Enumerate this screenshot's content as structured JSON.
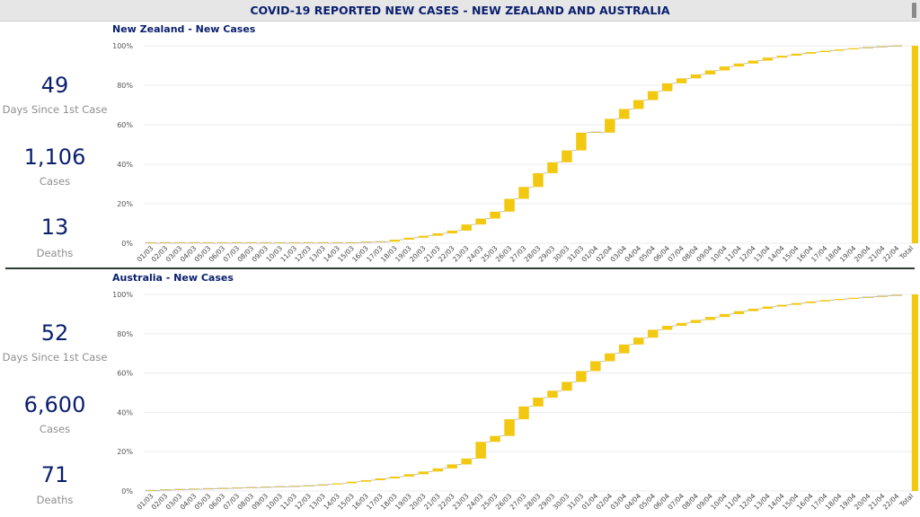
{
  "header": {
    "title": "COVID-19 REPORTED NEW CASES - NEW ZEALAND AND AUSTRALIA"
  },
  "colors": {
    "accent": "#F2C811",
    "title": "#0A1F6E",
    "muted": "#8F8F8F",
    "grid": "#EBEBEB"
  },
  "panels": [
    {
      "kpis": [
        {
          "value": "49",
          "label": "Days Since 1st Case"
        },
        {
          "value": "1,106",
          "label": "Cases"
        },
        {
          "value": "13",
          "label": "Deaths"
        }
      ]
    },
    {
      "kpis": [
        {
          "value": "52",
          "label": "Days Since 1st Case"
        },
        {
          "value": "6,600",
          "label": "Cases"
        },
        {
          "value": "71",
          "label": "Deaths"
        }
      ]
    }
  ],
  "chart_data": [
    {
      "type": "waterfall",
      "title": "New Zealand - New Cases",
      "ylim": [
        0,
        100
      ],
      "yticks": [
        "0%",
        "20%",
        "40%",
        "60%",
        "80%",
        "100%"
      ],
      "categories": [
        "01/03",
        "02/03",
        "03/03",
        "04/03",
        "05/03",
        "06/03",
        "07/03",
        "08/03",
        "09/03",
        "10/03",
        "11/03",
        "12/03",
        "13/03",
        "14/03",
        "15/03",
        "16/03",
        "17/03",
        "18/03",
        "19/03",
        "20/03",
        "21/03",
        "22/03",
        "23/03",
        "24/03",
        "25/03",
        "26/03",
        "27/03",
        "28/03",
        "29/03",
        "30/03",
        "31/03",
        "01/04",
        "02/04",
        "03/04",
        "04/04",
        "05/04",
        "06/04",
        "07/04",
        "08/04",
        "09/04",
        "10/04",
        "11/04",
        "12/04",
        "13/04",
        "14/04",
        "15/04",
        "16/04",
        "17/04",
        "18/04",
        "19/04",
        "20/04",
        "21/04",
        "22/04",
        "Total"
      ],
      "cumulative": [
        0,
        0,
        0,
        0,
        0,
        0,
        0,
        0,
        0,
        0,
        0,
        0,
        0,
        0,
        0.3,
        0.5,
        0.8,
        1.8,
        2.8,
        3.8,
        5.0,
        6.4,
        9.5,
        12.5,
        16.0,
        22.5,
        28.5,
        35.5,
        41.0,
        47.0,
        56.0,
        56.0,
        63.0,
        68.0,
        72.5,
        77.0,
        81.0,
        83.5,
        85.5,
        87.5,
        89.5,
        91.0,
        92.5,
        94.0,
        95.0,
        96.0,
        96.8,
        97.5,
        98.2,
        98.8,
        99.3,
        99.7,
        100.0,
        100.0
      ],
      "total": 100
    },
    {
      "type": "waterfall",
      "title": "Australia - New Cases",
      "ylim": [
        0,
        100
      ],
      "yticks": [
        "0%",
        "20%",
        "40%",
        "60%",
        "80%",
        "100%"
      ],
      "categories": [
        "01/03",
        "02/03",
        "03/03",
        "04/03",
        "05/03",
        "06/03",
        "07/03",
        "08/03",
        "09/03",
        "10/03",
        "11/03",
        "12/03",
        "13/03",
        "14/03",
        "15/03",
        "16/03",
        "17/03",
        "18/03",
        "19/03",
        "20/03",
        "21/03",
        "22/03",
        "23/03",
        "24/03",
        "25/03",
        "26/03",
        "27/03",
        "28/03",
        "29/03",
        "30/03",
        "31/03",
        "01/04",
        "02/04",
        "03/04",
        "04/04",
        "05/04",
        "06/04",
        "07/04",
        "08/04",
        "09/04",
        "10/04",
        "11/04",
        "12/04",
        "13/04",
        "14/04",
        "15/04",
        "16/04",
        "17/04",
        "18/04",
        "19/04",
        "20/04",
        "21/04",
        "22/04",
        "Total"
      ],
      "cumulative": [
        0.3,
        0.5,
        0.7,
        0.9,
        1.1,
        1.3,
        1.5,
        1.7,
        1.9,
        2.1,
        2.4,
        2.8,
        3.3,
        3.9,
        4.7,
        5.5,
        6.4,
        7.3,
        8.5,
        9.9,
        11.5,
        13.5,
        16.5,
        25.0,
        28.0,
        36.5,
        43.0,
        47.5,
        51.0,
        55.5,
        61.0,
        66.0,
        70.0,
        74.5,
        78.0,
        82.0,
        84.0,
        85.5,
        87.0,
        88.5,
        90.0,
        91.5,
        92.7,
        93.8,
        94.7,
        95.6,
        96.4,
        97.1,
        97.7,
        98.3,
        98.8,
        99.3,
        99.7,
        100.0
      ],
      "total": 100
    }
  ]
}
